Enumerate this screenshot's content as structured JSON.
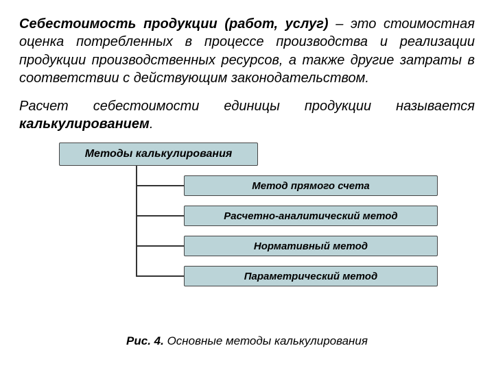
{
  "paragraph1": {
    "lead": "Себестоимость продукции (работ, услуг)",
    "rest": " – это стоимостная оценка потребленных в процессе производства и реализации продукции производственных ресурсов, а также другие затраты в соответствии с действующим законодательством."
  },
  "paragraph2": {
    "text_before": "Расчет себестоимости единицы продукции называется ",
    "term": "калькулированием",
    "text_after": "."
  },
  "diagram": {
    "type": "tree",
    "header": "Методы калькулирования",
    "children": [
      "Метод прямого счета",
      "Расчетно-аналитический метод",
      "Нормативный метод",
      "Параметрический метод"
    ],
    "box_fill": "#bbd4d8",
    "box_border": "#444444",
    "connector_color": "#333333",
    "header_fontsize": 16,
    "child_fontsize": 15
  },
  "caption": {
    "fignum": "Рис. 4.",
    "text": "  Основные методы калькулирования"
  }
}
